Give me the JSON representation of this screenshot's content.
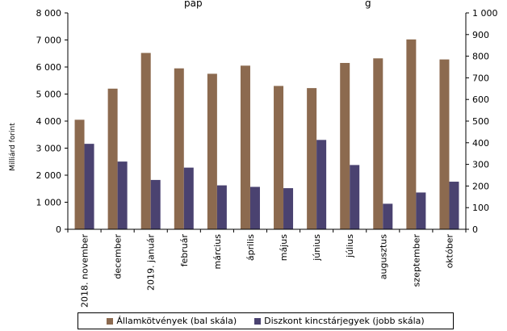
{
  "chart_data": {
    "type": "bar",
    "title": "pap",
    "title_right": "g",
    "ylabel": "Milliárd forint",
    "categories": [
      "2018. november",
      "december",
      "2019. január",
      "február",
      "március",
      "április",
      "május",
      "június",
      "július",
      "augusztus",
      "szeptember",
      "október"
    ],
    "series": [
      {
        "name": "Államkötvények (bal skála)",
        "axis": "left",
        "color": "#8c6a4f",
        "values": [
          4050,
          5200,
          6520,
          5950,
          5750,
          6050,
          5300,
          5220,
          6150,
          6320,
          7020,
          6280
        ]
      },
      {
        "name": "Diszkont kincstárjegyek (jobb skála)",
        "axis": "right",
        "color": "#4a4270",
        "values": [
          395,
          313,
          228,
          285,
          203,
          196,
          190,
          413,
          297,
          118,
          170,
          220
        ]
      }
    ],
    "ylim_left": [
      0,
      8000
    ],
    "ylim_right": [
      0,
      1000
    ],
    "yticks_left": [
      "0",
      "1 000",
      "2 000",
      "3 000",
      "4 000",
      "5 000",
      "6 000",
      "7 000",
      "8 000"
    ],
    "yticks_right": [
      "0",
      "100",
      "200",
      "300",
      "400",
      "500",
      "600",
      "700",
      "800",
      "900",
      "1 000"
    ],
    "legend_position": "bottom"
  }
}
